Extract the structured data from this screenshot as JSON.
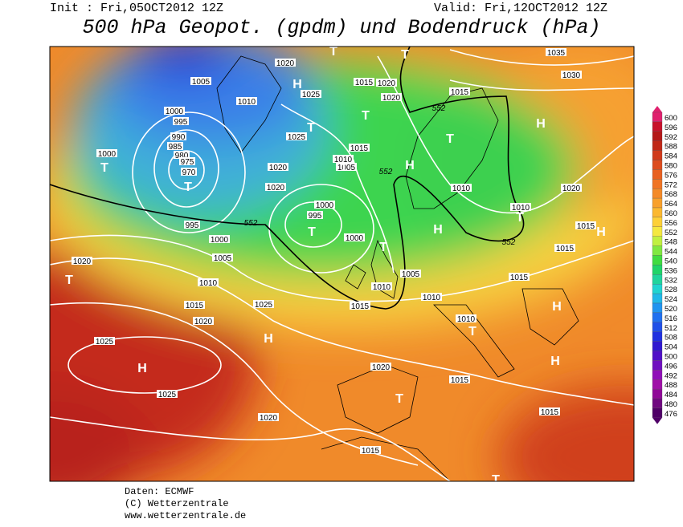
{
  "header": {
    "init": "Init : Fri,05OCT2012 12Z",
    "valid": "Valid: Fri,12OCT2012 12Z",
    "title": "500 hPa Geopot. (gpdm) und Bodendruck (hPa)"
  },
  "map": {
    "isobar_labels": [
      "1020",
      "1005",
      "1025",
      "1015",
      "1020",
      "1020",
      "1015",
      "1035",
      "1030",
      "1010",
      "1000",
      "995",
      "990",
      "985",
      "980",
      "975",
      "970",
      "1000",
      "1025",
      "1015",
      "1010",
      "1005",
      "1020",
      "1020",
      "1010",
      "1010",
      "1020",
      "1000",
      "995",
      "995",
      "1000",
      "1000",
      "1015",
      "1015",
      "1020",
      "1005",
      "1010",
      "1005",
      "1010",
      "1015",
      "1010",
      "1015",
      "1025",
      "1015",
      "1020",
      "1010",
      "1025",
      "1025",
      "1020",
      "1015",
      "1020",
      "1015",
      "1015"
    ],
    "geopotential_labels": [
      "552",
      "552",
      "552",
      "552"
    ],
    "pressure_centers": [
      "T",
      "T",
      "H",
      "T",
      "T",
      "T",
      "H",
      "T",
      "T",
      "H",
      "T",
      "T",
      "T",
      "H",
      "T",
      "H",
      "T",
      "H",
      "H",
      "H",
      "T",
      "H",
      "T",
      "T"
    ]
  },
  "legend": {
    "labels": [
      "600",
      "596",
      "592",
      "588",
      "584",
      "580",
      "576",
      "572",
      "568",
      "564",
      "560",
      "556",
      "552",
      "548",
      "544",
      "540",
      "536",
      "532",
      "528",
      "524",
      "520",
      "516",
      "512",
      "508",
      "504",
      "500",
      "496",
      "492",
      "488",
      "484",
      "480",
      "476"
    ]
  },
  "footer": {
    "lines": [
      "Daten: ECMWF",
      "(C) Wetterzentrale",
      "www.wetterzentrale.de"
    ]
  }
}
